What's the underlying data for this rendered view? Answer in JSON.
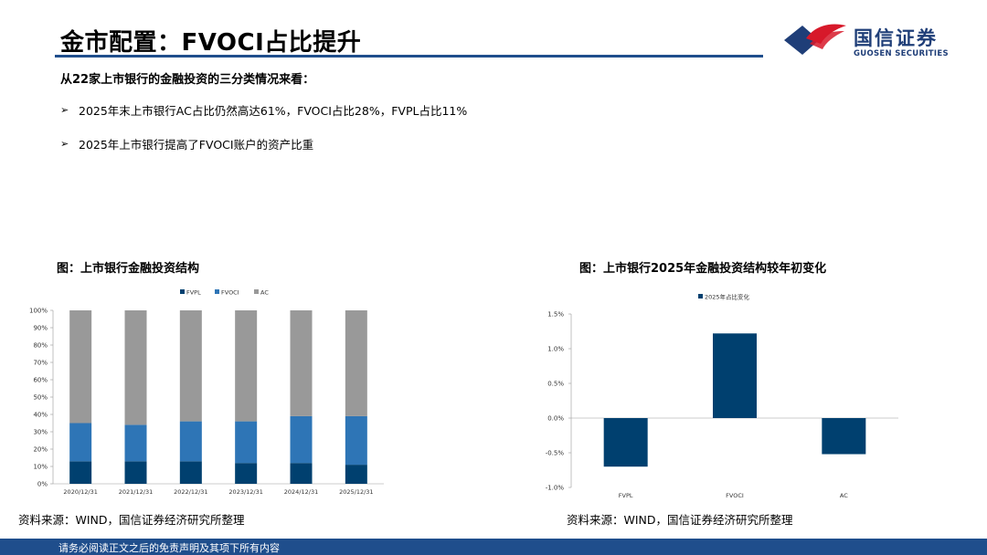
{
  "header": {
    "title": "金市配置：FVOCI占比提升"
  },
  "logo": {
    "name_cn": "国信证券",
    "name_en": "GUOSEN SECURITIES"
  },
  "content": {
    "intro": "从22家上市银行的金融投资的三分类情况来看：",
    "bullets": [
      "2025年末上市银行AC占比仍然高达61%，FVOCI占比28%，FVPL占比11%",
      "2025年上市银行提高了FVOCI账户的资产比重"
    ]
  },
  "charts": {
    "left_title": "图：上市银行金融投资结构",
    "right_title": "图：上市银行2025年金融投资结构较年初变化",
    "left_source": "资料来源：WIND，国信证券经济研究所整理",
    "right_source": "资料来源：WIND，国信证券经济研究所整理"
  },
  "footer": {
    "disclaimer": "请务必阅读正文之后的免责声明及其项下所有内容"
  },
  "colors": {
    "fvpl": "#00406f",
    "fvoci": "#2e75b6",
    "ac": "#999999",
    "change": "#00406f",
    "brand": "#1f4e8c"
  },
  "chart_data": [
    {
      "type": "bar",
      "stacked": true,
      "title": "图：上市银行金融投资结构",
      "categories": [
        "2020/12/31",
        "2021/12/31",
        "2022/12/31",
        "2023/12/31",
        "2024/12/31",
        "2025/12/31"
      ],
      "series": [
        {
          "name": "FVPL",
          "values": [
            13,
            13,
            13,
            12,
            12,
            11
          ]
        },
        {
          "name": "FVOCI",
          "values": [
            22,
            21,
            23,
            24,
            27,
            28
          ]
        },
        {
          "name": "AC",
          "values": [
            65,
            66,
            64,
            64,
            61,
            61
          ]
        }
      ],
      "yticks": [
        "0%",
        "10%",
        "20%",
        "30%",
        "40%",
        "50%",
        "60%",
        "70%",
        "80%",
        "90%",
        "100%"
      ],
      "ylim": [
        0,
        100
      ],
      "legend": "top"
    },
    {
      "type": "bar",
      "title": "图：上市银行2025年金融投资结构较年初变化",
      "categories": [
        "FVPL",
        "FVOCI",
        "AC"
      ],
      "series": [
        {
          "name": "2025年占比变化",
          "values": [
            -0.7,
            1.22,
            -0.52
          ]
        }
      ],
      "yticks": [
        "-1.0%",
        "-0.5%",
        "0.0%",
        "0.5%",
        "1.0%",
        "1.5%"
      ],
      "ylim": [
        -1.0,
        1.5
      ],
      "legend": "top"
    }
  ]
}
